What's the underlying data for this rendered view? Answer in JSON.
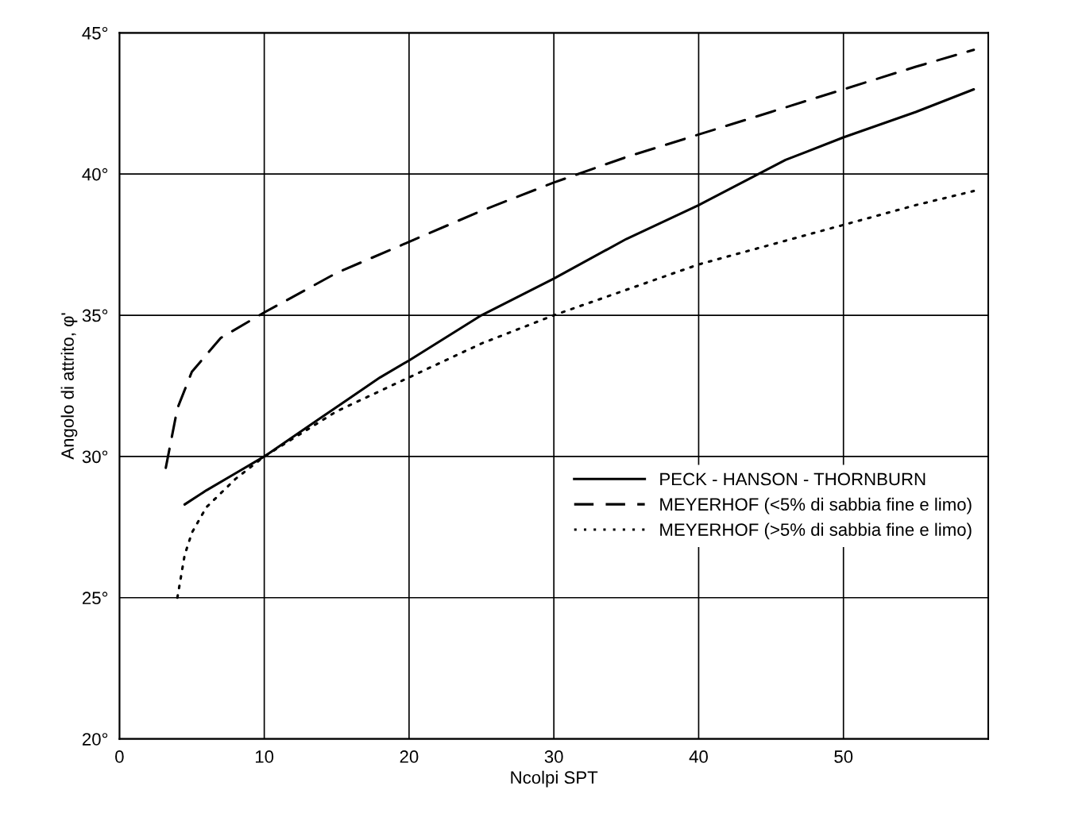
{
  "chart_data": {
    "type": "line",
    "xlabel": "Ncolpi SPT",
    "ylabel": "Angolo di attrito, φ'",
    "xlim": [
      0,
      60
    ],
    "ylim": [
      20,
      45
    ],
    "xticks": [
      0,
      10,
      20,
      30,
      40,
      50
    ],
    "yticks": [
      {
        "value": 20,
        "label": "20°"
      },
      {
        "value": 25,
        "label": "25°"
      },
      {
        "value": 30,
        "label": "30°"
      },
      {
        "value": 35,
        "label": "35°"
      },
      {
        "value": 40,
        "label": "40°"
      },
      {
        "value": 45,
        "label": "45°"
      }
    ],
    "grid": true,
    "legend": "right",
    "marker": "none",
    "series": [
      {
        "name": "PECK - HANSON - THORNBURN",
        "color": "#000000",
        "line_style": "solid",
        "x": [
          4.5,
          6,
          8,
          10,
          14,
          18,
          20,
          25,
          30,
          35,
          40,
          46,
          50,
          55,
          59
        ],
        "values": [
          28.3,
          28.8,
          29.4,
          30.0,
          31.4,
          32.8,
          33.4,
          35.0,
          36.3,
          37.7,
          38.9,
          40.5,
          41.3,
          42.2,
          43.0
        ]
      },
      {
        "name": "MEYERHOF (<5% di sabbia fine e limo)",
        "color": "#000000",
        "line_style": "dashed",
        "x": [
          3.2,
          4,
          5,
          7,
          10,
          15,
          20,
          25,
          30,
          35,
          40,
          45,
          50,
          55,
          59
        ],
        "values": [
          29.6,
          31.7,
          33.0,
          34.2,
          35.1,
          36.5,
          37.6,
          38.7,
          39.7,
          40.6,
          41.4,
          42.2,
          43.0,
          43.8,
          44.4
        ]
      },
      {
        "name": "MEYERHOF (>5% di sabbia fine e limo)",
        "color": "#000000",
        "line_style": "dotted",
        "x": [
          4,
          4.5,
          5,
          6,
          8,
          10,
          15,
          20,
          25,
          30,
          35,
          40,
          45,
          50,
          55,
          59
        ],
        "values": [
          25.0,
          26.5,
          27.3,
          28.2,
          29.2,
          30.0,
          31.6,
          32.8,
          34.0,
          35.0,
          35.9,
          36.8,
          37.5,
          38.2,
          38.9,
          39.4
        ]
      }
    ]
  }
}
